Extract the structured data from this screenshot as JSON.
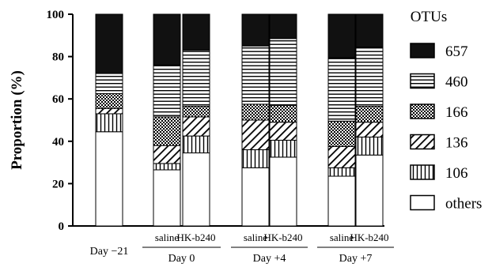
{
  "chart_data": {
    "type": "bar",
    "stacked": true,
    "ylabel": "Proportion (%)",
    "ylim": [
      0,
      100
    ],
    "yticks": [
      "0",
      "20",
      "40",
      "60",
      "80",
      "100"
    ],
    "legend_title": "OTUs",
    "legend_position": "right",
    "series_order_bottom_to_top": [
      "others",
      "106",
      "136",
      "166",
      "460",
      "657"
    ],
    "legend_order": [
      "657",
      "460",
      "166",
      "136",
      "106",
      "others"
    ],
    "series": [
      {
        "name": "others",
        "pattern": "white",
        "values": [
          44.5,
          26.5,
          34.5,
          27.5,
          32.5,
          23.5,
          33.5
        ]
      },
      {
        "name": "106",
        "pattern": "vertical",
        "values": [
          8.5,
          3.0,
          8.0,
          8.5,
          8.0,
          4.0,
          8.5
        ]
      },
      {
        "name": "136",
        "pattern": "diagonal",
        "values": [
          2.5,
          8.5,
          9.0,
          14.0,
          8.5,
          10.0,
          7.0
        ]
      },
      {
        "name": "166",
        "pattern": "checker",
        "values": [
          7.0,
          13.5,
          5.0,
          7.5,
          8.0,
          12.0,
          7.5
        ]
      },
      {
        "name": "460",
        "pattern": "horizontal",
        "values": [
          9.5,
          24.5,
          26.5,
          27.5,
          31.5,
          30.0,
          28.0
        ]
      },
      {
        "name": "657",
        "pattern": "black",
        "values": [
          28.0,
          24.0,
          17.0,
          15.0,
          11.5,
          20.5,
          15.5
        ]
      }
    ],
    "bars": [
      {
        "sub_label": ""
      },
      {
        "sub_label": "saline"
      },
      {
        "sub_label": "HK-b240"
      },
      {
        "sub_label": "saline"
      },
      {
        "sub_label": "HK-b240"
      },
      {
        "sub_label": "saline"
      },
      {
        "sub_label": "HK-b240"
      }
    ],
    "groups": [
      {
        "label": "Day −21",
        "bars": [
          0
        ],
        "underline": false
      },
      {
        "label": "Day 0",
        "bars": [
          1,
          2
        ],
        "underline": true
      },
      {
        "label": "Day +4",
        "bars": [
          3,
          4
        ],
        "underline": true
      },
      {
        "label": "Day +7",
        "bars": [
          5,
          6
        ],
        "underline": true
      }
    ]
  }
}
